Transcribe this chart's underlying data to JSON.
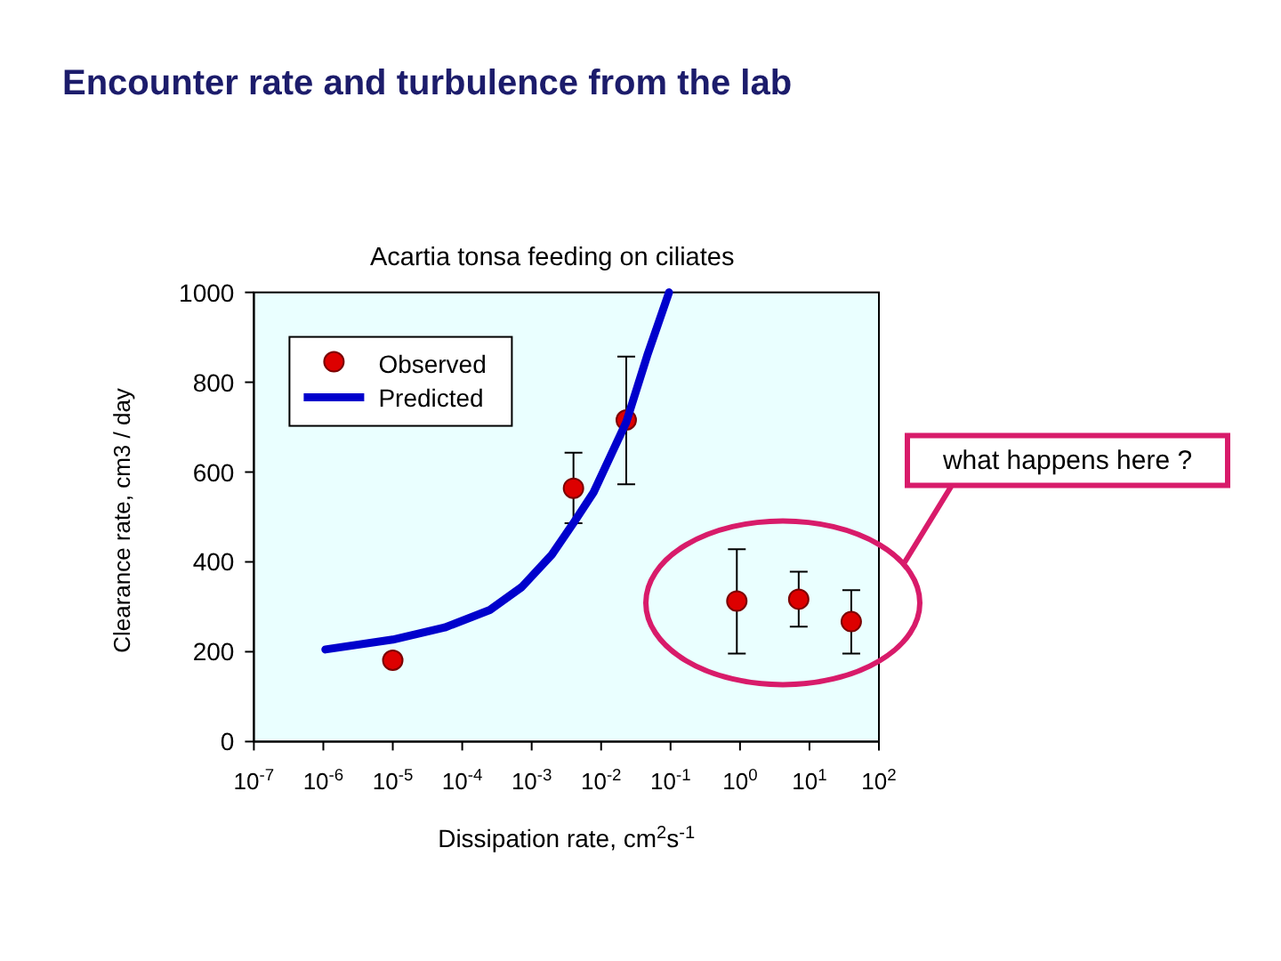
{
  "chart_data": {
    "type": "scatter",
    "title": "Encounter rate and turbulence from the lab",
    "subtitle": "Acartia tonsa feeding on ciliates",
    "xlabel": "Dissipation rate, cm$^{2}$s$^{-1}$",
    "ylabel": "Clearance rate, cm3 / day",
    "series": [
      {
        "name": "Observed",
        "color": "#dd0000",
        "x": [
          1e-05,
          0.004,
          0.023,
          0.9,
          7,
          40
        ],
        "values": [
          181,
          564,
          716,
          313,
          317,
          267
        ],
        "errors": [
          null,
          [
            486,
            643
          ],
          [
            573,
            857
          ],
          [
            196,
            428
          ],
          [
            256,
            378
          ],
          [
            196,
            337
          ]
        ]
      },
      {
        "name": "Predicted",
        "type": "line",
        "color": "#0000cc",
        "marker": "none",
        "x": [
          1.07e-06,
          1e-05,
          5.6e-05,
          0.00025,
          0.00072,
          0.00195,
          0.0041,
          0.0078,
          0.023,
          0.046,
          0.095
        ],
        "values": [
          205,
          227,
          254,
          293,
          344,
          416,
          489,
          555,
          711,
          859,
          1000
        ]
      }
    ],
    "log": "x",
    "xlim": [
      1e-07,
      100
    ],
    "ylim": [
      0,
      1000
    ],
    "xticks": [
      {
        "value": 1e-07,
        "label": "10$^{-7}$"
      },
      {
        "value": 1e-06,
        "label": "10$^{-6}$"
      },
      {
        "value": 1e-05,
        "label": "10$^{-5}$"
      },
      {
        "value": 0.0001,
        "label": "10$^{-4}$"
      },
      {
        "value": 0.001,
        "label": "10$^{-3}$"
      },
      {
        "value": 0.01,
        "label": "10$^{-2}$"
      },
      {
        "value": 0.1,
        "label": "10$^{-1}$"
      },
      {
        "value": 1,
        "label": "10$^{0}$"
      },
      {
        "value": 10,
        "label": "10$^{1}$"
      },
      {
        "value": 100,
        "label": "10$^{2}$"
      }
    ],
    "yticks": [
      0,
      200,
      400,
      600,
      800,
      1000
    ],
    "grid": false,
    "legend": "top left",
    "marker": "circle",
    "annotations": [
      "what happens here ?"
    ]
  }
}
